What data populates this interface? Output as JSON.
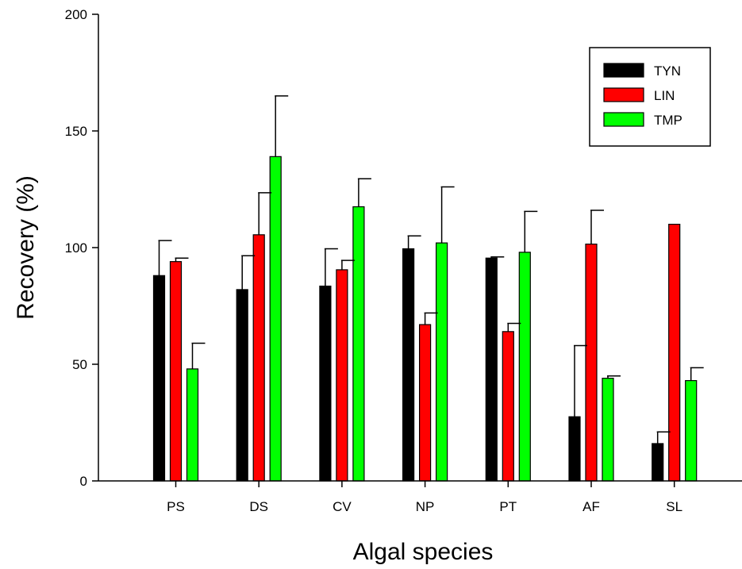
{
  "chart_data": {
    "type": "bar",
    "title": "",
    "xlabel": "Algal species",
    "ylabel": "Recovery (%)",
    "ylim": [
      0,
      200
    ],
    "yticks": [
      0,
      50,
      100,
      150,
      200
    ],
    "grid": false,
    "legend_position": "top-right",
    "categories": [
      "PS",
      "DS",
      "CV",
      "NP",
      "PT",
      "AF",
      "SL"
    ],
    "series": [
      {
        "name": "TYN",
        "color": "#000000",
        "values": [
          88,
          82,
          83.5,
          99.5,
          95.5,
          27.5,
          16
        ],
        "errors": [
          15,
          14.5,
          16,
          5.5,
          0.5,
          30.5,
          5
        ]
      },
      {
        "name": "LIN",
        "color": "#ff0000",
        "values": [
          94,
          105.5,
          90.5,
          67,
          64,
          101.5,
          110
        ],
        "errors": [
          1.5,
          18,
          4,
          5,
          3.5,
          14.5,
          0
        ]
      },
      {
        "name": "TMP",
        "color": "#00ff00",
        "values": [
          48,
          139,
          117.5,
          102,
          98,
          44,
          43
        ],
        "errors": [
          11,
          26,
          12,
          24,
          17.5,
          1,
          5.5
        ]
      }
    ]
  }
}
